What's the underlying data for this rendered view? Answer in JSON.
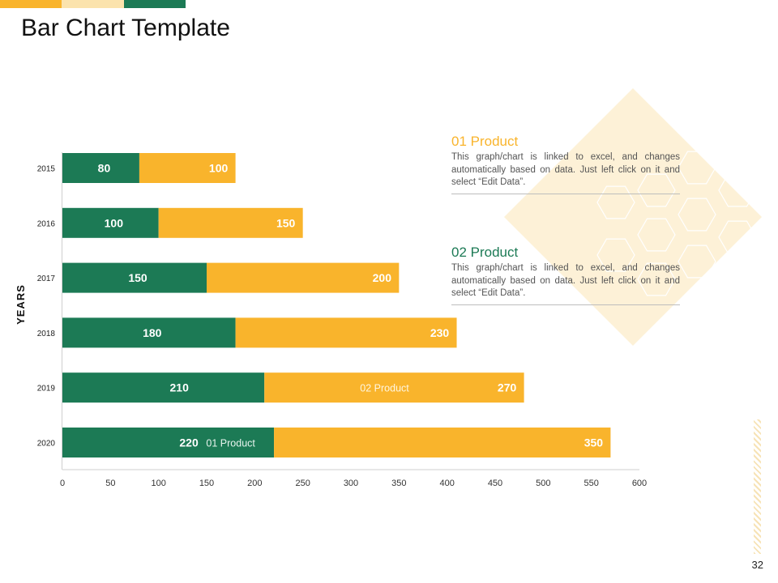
{
  "colors": {
    "green": "#1c7a55",
    "orange": "#f9b42c",
    "light_orange": "#fbe3ad",
    "deco": "#fdf1d7"
  },
  "slide": {
    "title": "Bar Chart Template",
    "page_number": "32"
  },
  "legend": [
    {
      "title": "01 Product",
      "text": "This graph/chart is linked to excel, and changes automatically based on data. Just left click on it and select “Edit Data”."
    },
    {
      "title": "02 Product",
      "text": "This graph/chart is linked to excel, and changes automatically based on data. Just left click on it and select “Edit Data”."
    }
  ],
  "chart_data": {
    "type": "bar",
    "orientation": "horizontal",
    "stacked": true,
    "title": "",
    "ylabel": "YEARS",
    "xlabel": "",
    "xlim": [
      0,
      600
    ],
    "xticks": [
      0,
      50,
      100,
      150,
      200,
      250,
      300,
      350,
      400,
      450,
      500,
      550,
      600
    ],
    "categories": [
      "2015",
      "2016",
      "2017",
      "2018",
      "2019",
      "2020"
    ],
    "series": [
      {
        "name": "01 Product",
        "values": [
          80,
          100,
          150,
          180,
          210,
          220
        ]
      },
      {
        "name": "02 Product",
        "values": [
          100,
          150,
          200,
          230,
          270,
          350
        ]
      }
    ],
    "bar_labels": [
      "02 Product",
      "01 Product"
    ]
  }
}
